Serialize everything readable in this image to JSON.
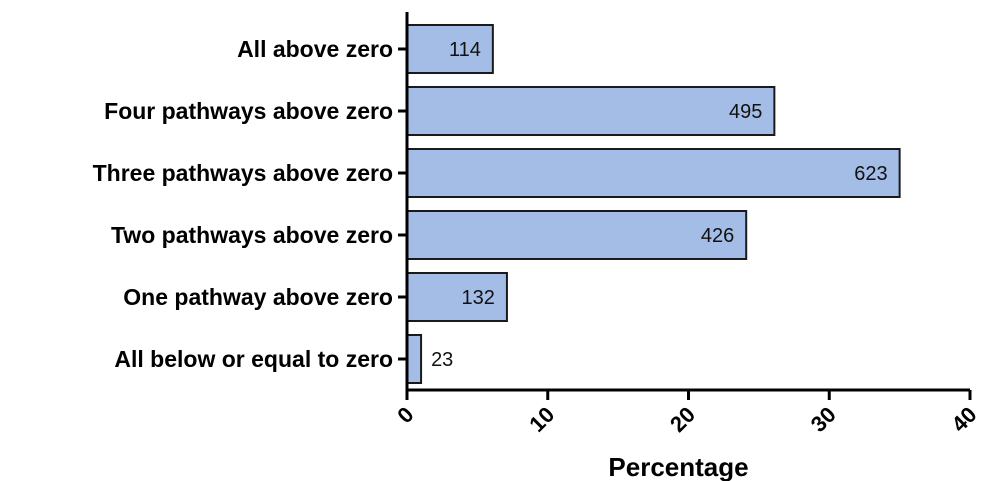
{
  "chart_data": {
    "type": "bar",
    "orientation": "horizontal",
    "title": "",
    "xlabel": "Percentage",
    "ylabel": "",
    "xlim": [
      0,
      40
    ],
    "x_ticks": [
      "0",
      "10",
      "20",
      "30",
      "40"
    ],
    "grid": false,
    "legend": "none",
    "categories": [
      "All above zero",
      "Four pathways above zero",
      "Three pathways above zero",
      "Two pathways above zero",
      "One pathway above zero",
      "All below or equal to zero"
    ],
    "values": [
      6.1,
      26.1,
      35.0,
      24.1,
      7.1,
      1.0
    ],
    "data_labels": [
      "114",
      "495",
      "623",
      "426",
      "132",
      "23"
    ],
    "bar_color": "#a3bde6",
    "bar_edge_color": "#1a1a1a"
  }
}
